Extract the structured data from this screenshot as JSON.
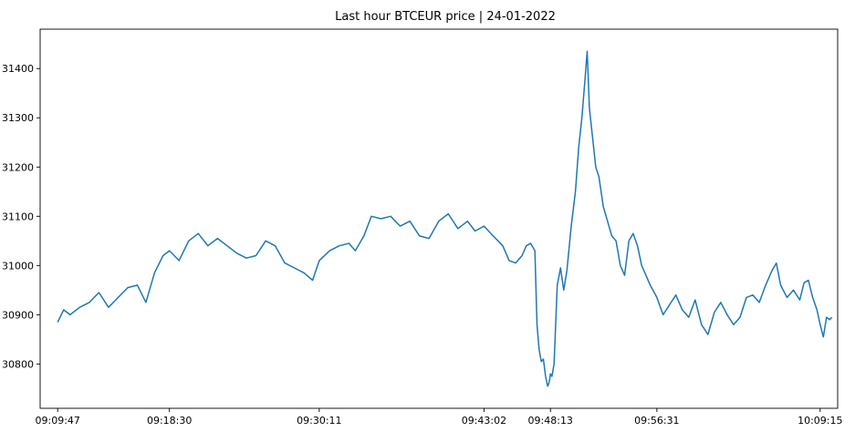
{
  "chart_data": {
    "type": "line",
    "title": "Last hour BTCEUR price | 24-01-2022",
    "xlabel": "",
    "ylabel": "",
    "grid": false,
    "legend": "none",
    "xlim": [
      "09:08:25",
      "10:10:37"
    ],
    "ylim": [
      30710,
      31480
    ],
    "x_ticks": [
      "09:09:47",
      "09:18:30",
      "09:30:11",
      "09:43:02",
      "09:48:13",
      "09:56:31",
      "10:09:15"
    ],
    "y_ticks": [
      30800,
      30900,
      31000,
      31100,
      31200,
      31300,
      31400
    ],
    "series": [
      {
        "name": "",
        "color": "#1f77b4",
        "points": [
          [
            "09:09:47",
            30885
          ],
          [
            "09:10:15",
            30910
          ],
          [
            "09:10:45",
            30900
          ],
          [
            "09:11:30",
            30915
          ],
          [
            "09:12:15",
            30925
          ],
          [
            "09:13:00",
            30945
          ],
          [
            "09:13:45",
            30915
          ],
          [
            "09:14:30",
            30935
          ],
          [
            "09:15:15",
            30955
          ],
          [
            "09:16:00",
            30960
          ],
          [
            "09:16:40",
            30925
          ],
          [
            "09:17:20",
            30985
          ],
          [
            "09:18:00",
            31020
          ],
          [
            "09:18:30",
            31030
          ],
          [
            "09:19:15",
            31010
          ],
          [
            "09:20:00",
            31050
          ],
          [
            "09:20:45",
            31065
          ],
          [
            "09:21:30",
            31040
          ],
          [
            "09:22:15",
            31055
          ],
          [
            "09:23:00",
            31040
          ],
          [
            "09:23:45",
            31025
          ],
          [
            "09:24:30",
            31015
          ],
          [
            "09:25:15",
            31020
          ],
          [
            "09:26:00",
            31050
          ],
          [
            "09:26:45",
            31040
          ],
          [
            "09:27:30",
            31005
          ],
          [
            "09:28:15",
            30995
          ],
          [
            "09:29:00",
            30985
          ],
          [
            "09:29:40",
            30970
          ],
          [
            "09:30:11",
            31010
          ],
          [
            "09:31:00",
            31030
          ],
          [
            "09:31:45",
            31040
          ],
          [
            "09:32:30",
            31045
          ],
          [
            "09:33:00",
            31030
          ],
          [
            "09:33:40",
            31060
          ],
          [
            "09:34:15",
            31100
          ],
          [
            "09:35:00",
            31095
          ],
          [
            "09:35:45",
            31100
          ],
          [
            "09:36:30",
            31080
          ],
          [
            "09:37:15",
            31090
          ],
          [
            "09:38:00",
            31060
          ],
          [
            "09:38:45",
            31055
          ],
          [
            "09:39:30",
            31090
          ],
          [
            "09:40:15",
            31105
          ],
          [
            "09:41:00",
            31075
          ],
          [
            "09:41:45",
            31090
          ],
          [
            "09:42:20",
            31070
          ],
          [
            "09:43:02",
            31080
          ],
          [
            "09:43:45",
            31060
          ],
          [
            "09:44:30",
            31040
          ],
          [
            "09:45:00",
            31010
          ],
          [
            "09:45:30",
            31005
          ],
          [
            "09:46:00",
            31020
          ],
          [
            "09:46:20",
            31040
          ],
          [
            "09:46:40",
            31045
          ],
          [
            "09:47:00",
            31030
          ],
          [
            "09:47:10",
            30880
          ],
          [
            "09:47:20",
            30830
          ],
          [
            "09:47:30",
            30805
          ],
          [
            "09:47:40",
            30810
          ],
          [
            "09:47:50",
            30775
          ],
          [
            "09:48:00",
            30755
          ],
          [
            "09:48:05",
            30760
          ],
          [
            "09:48:10",
            30770
          ],
          [
            "09:48:13",
            30780
          ],
          [
            "09:48:20",
            30775
          ],
          [
            "09:48:30",
            30800
          ],
          [
            "09:48:45",
            30960
          ],
          [
            "09:49:00",
            30995
          ],
          [
            "09:49:15",
            30950
          ],
          [
            "09:49:30",
            30990
          ],
          [
            "09:49:50",
            31080
          ],
          [
            "09:50:10",
            31150
          ],
          [
            "09:50:25",
            31240
          ],
          [
            "09:50:40",
            31300
          ],
          [
            "09:50:55",
            31380
          ],
          [
            "09:51:05",
            31435
          ],
          [
            "09:51:15",
            31320
          ],
          [
            "09:51:30",
            31260
          ],
          [
            "09:51:45",
            31200
          ],
          [
            "09:52:00",
            31180
          ],
          [
            "09:52:20",
            31120
          ],
          [
            "09:52:40",
            31090
          ],
          [
            "09:53:00",
            31060
          ],
          [
            "09:53:20",
            31050
          ],
          [
            "09:53:40",
            31000
          ],
          [
            "09:54:00",
            30980
          ],
          [
            "09:54:20",
            31050
          ],
          [
            "09:54:40",
            31065
          ],
          [
            "09:55:00",
            31040
          ],
          [
            "09:55:20",
            31000
          ],
          [
            "09:55:40",
            30980
          ],
          [
            "09:56:00",
            30960
          ],
          [
            "09:56:31",
            30935
          ],
          [
            "09:57:00",
            30900
          ],
          [
            "09:57:30",
            30920
          ],
          [
            "09:58:00",
            30940
          ],
          [
            "09:58:30",
            30910
          ],
          [
            "09:59:00",
            30895
          ],
          [
            "09:59:30",
            30930
          ],
          [
            "10:00:00",
            30880
          ],
          [
            "10:00:30",
            30860
          ],
          [
            "10:01:00",
            30905
          ],
          [
            "10:01:30",
            30925
          ],
          [
            "10:02:00",
            30900
          ],
          [
            "10:02:30",
            30880
          ],
          [
            "10:03:00",
            30895
          ],
          [
            "10:03:30",
            30935
          ],
          [
            "10:04:00",
            30940
          ],
          [
            "10:04:30",
            30925
          ],
          [
            "10:05:00",
            30960
          ],
          [
            "10:05:30",
            30990
          ],
          [
            "10:05:50",
            31005
          ],
          [
            "10:06:10",
            30960
          ],
          [
            "10:06:40",
            30935
          ],
          [
            "10:07:10",
            30950
          ],
          [
            "10:07:40",
            30930
          ],
          [
            "10:08:00",
            30965
          ],
          [
            "10:08:20",
            30970
          ],
          [
            "10:08:40",
            30935
          ],
          [
            "10:09:00",
            30910
          ],
          [
            "10:09:15",
            30880
          ],
          [
            "10:09:30",
            30855
          ],
          [
            "10:09:45",
            30895
          ],
          [
            "10:10:00",
            30890
          ],
          [
            "10:10:10",
            30895
          ]
        ]
      }
    ]
  }
}
